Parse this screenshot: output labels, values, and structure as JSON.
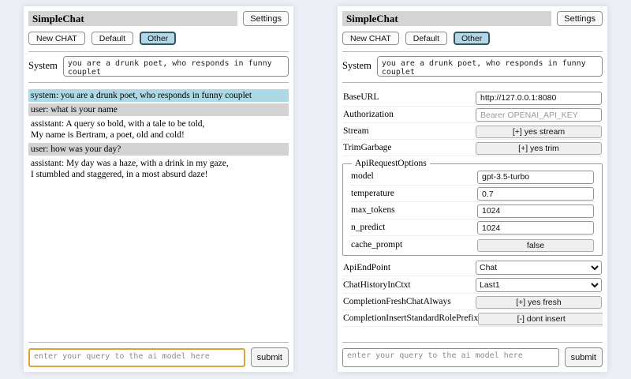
{
  "app": {
    "title": "SimpleChat",
    "settings_button": "Settings",
    "sessions": {
      "new_chat": "New CHAT",
      "default": "Default",
      "other": "Other"
    },
    "active_session": "Other",
    "system": {
      "label": "System",
      "value": "you are a drunk poet, who responds in funny couplet"
    },
    "query": {
      "placeholder": "enter your query to the ai model here",
      "submit": "submit"
    }
  },
  "chat": {
    "messages": [
      {
        "role": "system",
        "text": "system: you are a drunk poet, who responds in funny couplet"
      },
      {
        "role": "user",
        "text": "user: what is your name"
      },
      {
        "role": "assistant",
        "text": "assistant: A query so bold, with a tale to be told,\nMy name is Bertram, a poet, old and cold!"
      },
      {
        "role": "user",
        "text": "user: how was your day?"
      },
      {
        "role": "assistant",
        "text": "assistant: My day was a haze, with a drink in my gaze,\nI stumbled and staggered, in a most absurd daze!"
      }
    ]
  },
  "settings": {
    "base_url": {
      "label": "BaseURL",
      "value": "http://127.0.0.1:8080"
    },
    "authorization": {
      "label": "Authorization",
      "placeholder": "Bearer OPENAI_API_KEY"
    },
    "stream": {
      "label": "Stream",
      "button": "[+] yes stream"
    },
    "trim_garbage": {
      "label": "TrimGarbage",
      "button": "[+] yes trim"
    },
    "api_request_options": {
      "legend": "ApiRequestOptions",
      "model": {
        "label": "model",
        "value": "gpt-3.5-turbo"
      },
      "temperature": {
        "label": "temperature",
        "value": "0.7"
      },
      "max_tokens": {
        "label": "max_tokens",
        "value": "1024"
      },
      "n_predict": {
        "label": "n_predict",
        "value": "1024"
      },
      "cache_prompt": {
        "label": "cache_prompt",
        "button": "false"
      }
    },
    "api_endpoint": {
      "label": "ApiEndPoint",
      "selected": "Chat"
    },
    "chat_history_in_ctxt": {
      "label": "ChatHistoryInCtxt",
      "selected": "Last1"
    },
    "completion_fresh_chat_always": {
      "label": "CompletionFreshChatAlways",
      "button": "[+] yes fresh"
    },
    "completion_insert_standard_role_prefix": {
      "label": "CompletionInsertStandardRolePrefix",
      "button": "[-] dont insert"
    }
  },
  "colors": {
    "titlebar_bg": "#d4d4d4",
    "active_session_bg": "#b3d7e6",
    "active_session_border": "#36545e",
    "system_message_bg": "#add8e6",
    "user_message_bg": "#d3d3d3",
    "query_border_accent": "#d9a43b"
  }
}
